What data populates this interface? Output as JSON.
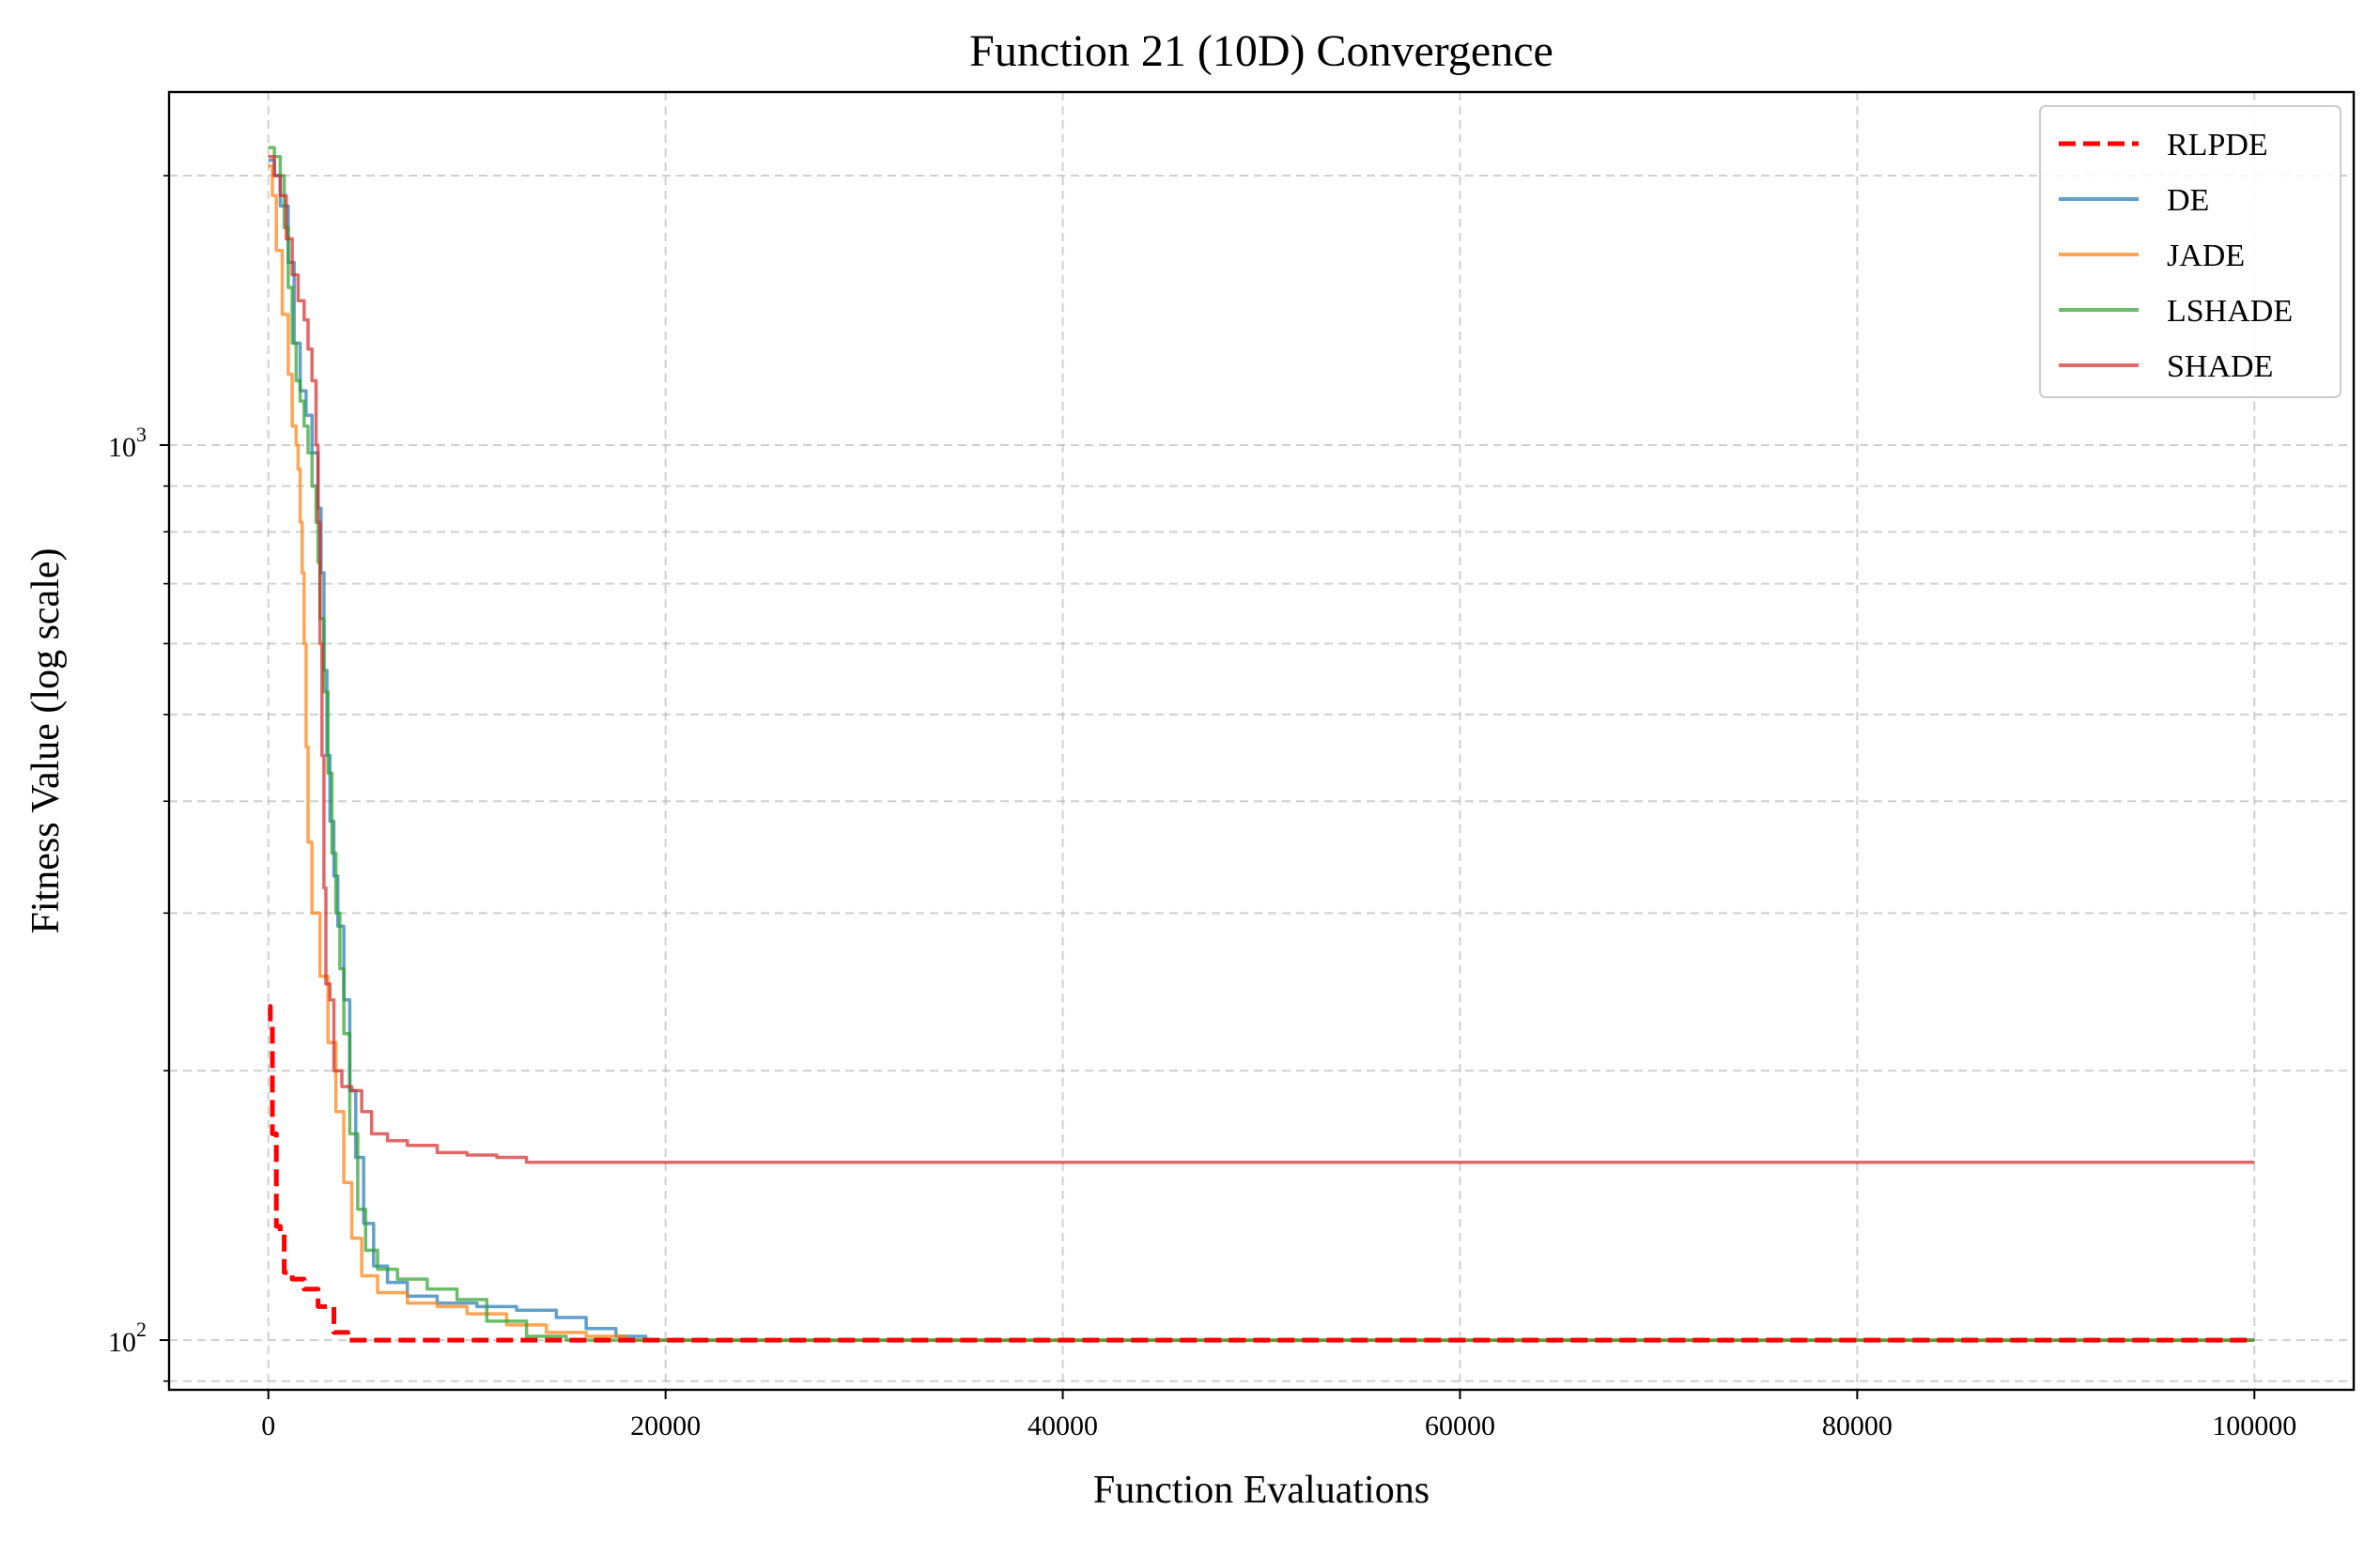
{
  "chart_data": {
    "type": "line",
    "title": "Function 21 (10D) Convergence",
    "xlabel": "Function Evaluations",
    "ylabel": "Fitness Value (log scale)",
    "xscale": "linear",
    "yscale": "log",
    "xlim": [
      -5000,
      105000
    ],
    "ylim": [
      88,
      2480
    ],
    "xticks": [
      {
        "value": 0,
        "label": "0"
      },
      {
        "value": 20000,
        "label": "20000"
      },
      {
        "value": 40000,
        "label": "40000"
      },
      {
        "value": 60000,
        "label": "60000"
      },
      {
        "value": 80000,
        "label": "80000"
      },
      {
        "value": 100000,
        "label": "100000"
      }
    ],
    "yticks_major": [
      {
        "value": 100,
        "base": "10",
        "exp": "2"
      },
      {
        "value": 1000,
        "base": "10",
        "exp": "3"
      }
    ],
    "yticks_minor": [
      90,
      200,
      300,
      400,
      500,
      600,
      700,
      800,
      900,
      2000
    ],
    "grid": true,
    "legend_position": "top-right",
    "series": [
      {
        "name": "RLPDE",
        "color": "#ff0000",
        "style": "dashed",
        "points": [
          [
            0,
            236
          ],
          [
            100,
            225
          ],
          [
            200,
            170
          ],
          [
            400,
            134
          ],
          [
            600,
            132
          ],
          [
            800,
            119
          ],
          [
            1200,
            117
          ],
          [
            1800,
            114
          ],
          [
            2500,
            109
          ],
          [
            3300,
            102
          ],
          [
            4000,
            100
          ],
          [
            100000,
            100
          ]
        ]
      },
      {
        "name": "DE",
        "color": "#1f77b4",
        "style": "solid",
        "points": [
          [
            0,
            2080
          ],
          [
            300,
            2000
          ],
          [
            600,
            1850
          ],
          [
            1000,
            1600
          ],
          [
            1300,
            1300
          ],
          [
            1600,
            1150
          ],
          [
            1900,
            1080
          ],
          [
            2200,
            980
          ],
          [
            2500,
            850
          ],
          [
            2650,
            720
          ],
          [
            2800,
            560
          ],
          [
            2950,
            450
          ],
          [
            3100,
            380
          ],
          [
            3300,
            330
          ],
          [
            3500,
            290
          ],
          [
            3800,
            240
          ],
          [
            4100,
            190
          ],
          [
            4400,
            160
          ],
          [
            4800,
            135
          ],
          [
            5300,
            121
          ],
          [
            6000,
            116
          ],
          [
            7000,
            112
          ],
          [
            8500,
            110
          ],
          [
            10500,
            109
          ],
          [
            12500,
            108
          ],
          [
            14500,
            106
          ],
          [
            16000,
            103
          ],
          [
            17500,
            101
          ],
          [
            19000,
            100
          ],
          [
            100000,
            100
          ]
        ]
      },
      {
        "name": "JADE",
        "color": "#ff7f0e",
        "style": "solid",
        "points": [
          [
            0,
            2050
          ],
          [
            200,
            1900
          ],
          [
            400,
            1650
          ],
          [
            700,
            1400
          ],
          [
            1000,
            1200
          ],
          [
            1200,
            1050
          ],
          [
            1400,
            1000
          ],
          [
            1500,
            940
          ],
          [
            1600,
            820
          ],
          [
            1700,
            720
          ],
          [
            1800,
            600
          ],
          [
            1900,
            460
          ],
          [
            2000,
            360
          ],
          [
            2200,
            300
          ],
          [
            2600,
            255
          ],
          [
            3000,
            215
          ],
          [
            3400,
            180
          ],
          [
            3800,
            150
          ],
          [
            4200,
            130
          ],
          [
            4700,
            118
          ],
          [
            5500,
            113
          ],
          [
            7000,
            110
          ],
          [
            8500,
            109
          ],
          [
            10000,
            107
          ],
          [
            12000,
            104
          ],
          [
            14000,
            102
          ],
          [
            16000,
            101
          ],
          [
            18000,
            100
          ],
          [
            100000,
            100
          ]
        ]
      },
      {
        "name": "LSHADE",
        "color": "#2ca02c",
        "style": "solid",
        "points": [
          [
            0,
            2150
          ],
          [
            300,
            2100
          ],
          [
            600,
            2000
          ],
          [
            800,
            1750
          ],
          [
            1000,
            1500
          ],
          [
            1200,
            1300
          ],
          [
            1400,
            1180
          ],
          [
            1600,
            1120
          ],
          [
            1800,
            1050
          ],
          [
            2000,
            980
          ],
          [
            2200,
            900
          ],
          [
            2400,
            820
          ],
          [
            2500,
            740
          ],
          [
            2600,
            640
          ],
          [
            2800,
            530
          ],
          [
            3000,
            430
          ],
          [
            3200,
            350
          ],
          [
            3400,
            300
          ],
          [
            3600,
            260
          ],
          [
            3800,
            220
          ],
          [
            4100,
            170
          ],
          [
            4500,
            140
          ],
          [
            4900,
            126
          ],
          [
            5500,
            120
          ],
          [
            6500,
            117
          ],
          [
            8000,
            114
          ],
          [
            9500,
            111
          ],
          [
            11000,
            105
          ],
          [
            13000,
            101
          ],
          [
            15000,
            100
          ],
          [
            100000,
            100
          ]
        ]
      },
      {
        "name": "SHADE",
        "color": "#d62728",
        "style": "solid",
        "points": [
          [
            0,
            2100
          ],
          [
            300,
            2000
          ],
          [
            600,
            1900
          ],
          [
            900,
            1700
          ],
          [
            1200,
            1550
          ],
          [
            1500,
            1450
          ],
          [
            1800,
            1380
          ],
          [
            2000,
            1280
          ],
          [
            2200,
            1180
          ],
          [
            2400,
            1000
          ],
          [
            2500,
            820
          ],
          [
            2600,
            600
          ],
          [
            2700,
            450
          ],
          [
            2800,
            320
          ],
          [
            2900,
            250
          ],
          [
            3100,
            240
          ],
          [
            3300,
            200
          ],
          [
            3700,
            192
          ],
          [
            4200,
            190
          ],
          [
            4700,
            180
          ],
          [
            5200,
            170
          ],
          [
            6000,
            167
          ],
          [
            7000,
            165
          ],
          [
            8500,
            162
          ],
          [
            10000,
            161
          ],
          [
            11500,
            160
          ],
          [
            13000,
            158
          ],
          [
            100000,
            158
          ]
        ]
      }
    ]
  }
}
